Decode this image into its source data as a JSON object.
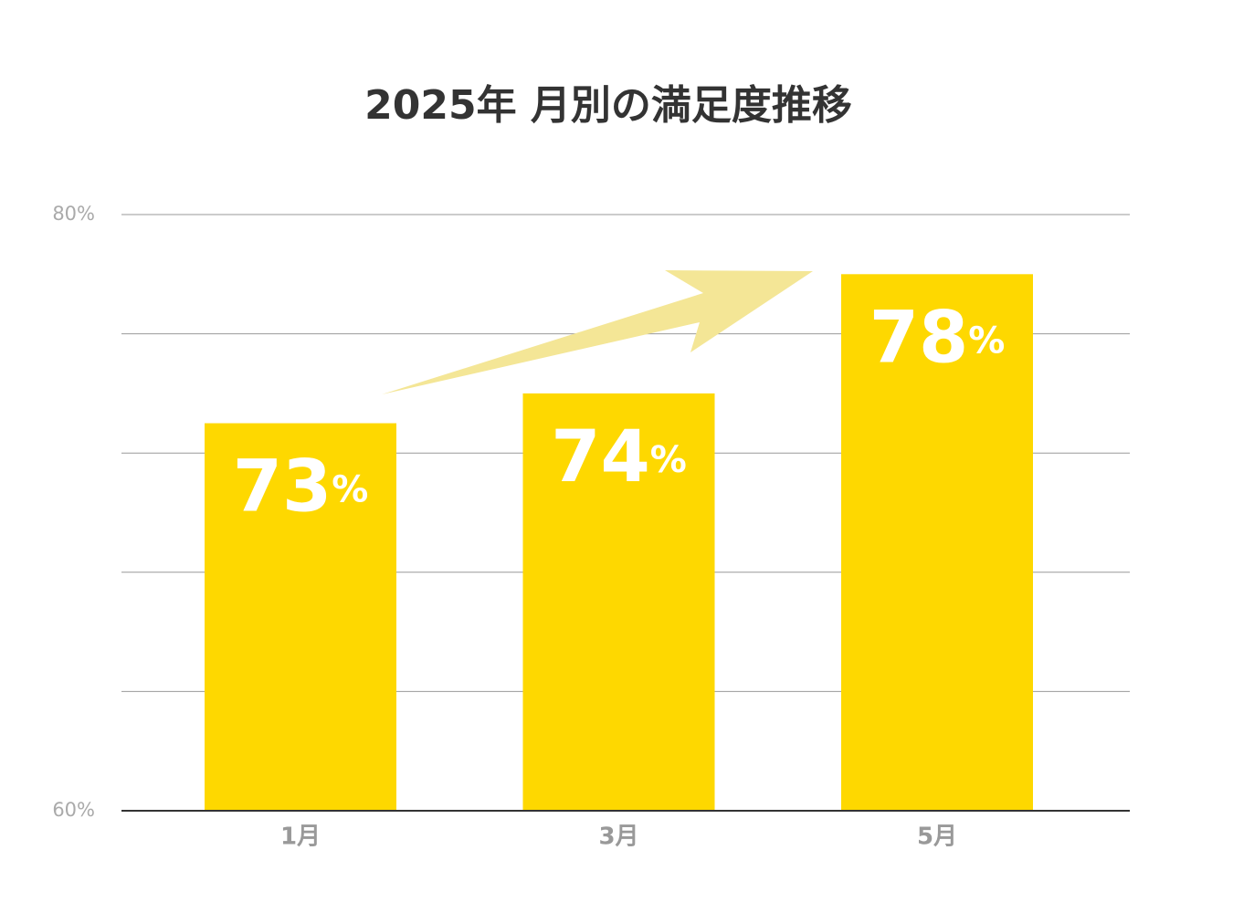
{
  "chart_data": {
    "type": "bar",
    "title": "2025年 月別の満足度推移",
    "categories": [
      "1月",
      "3月",
      "5月"
    ],
    "values": [
      73,
      74,
      78
    ],
    "value_labels": [
      "73%",
      "74%",
      "78%"
    ],
    "color": "#fed800",
    "ylim": [
      60,
      80
    ],
    "yticks": [
      {
        "value": 60,
        "label": "60%"
      },
      {
        "value": 80,
        "label": "80%"
      }
    ],
    "ygrid": [
      60,
      64,
      68,
      72,
      76,
      80
    ],
    "grid": true
  }
}
